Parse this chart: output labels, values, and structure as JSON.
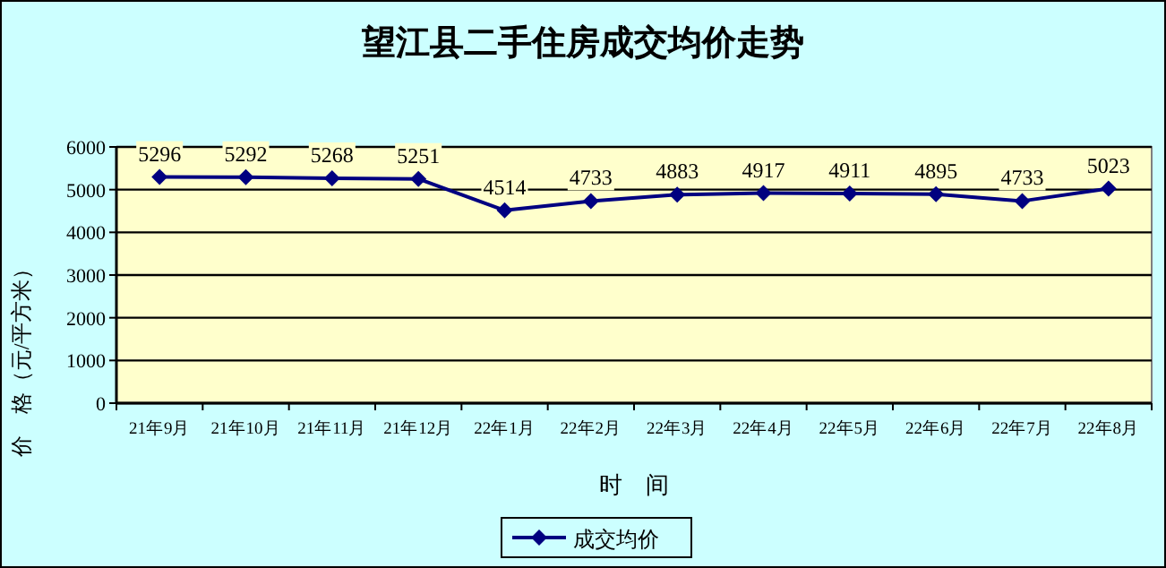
{
  "chart_data": {
    "type": "line",
    "title": "望江县二手住房成交均价走势",
    "xlabel": "时　间",
    "ylabel": "价　格（元/平方米）",
    "categories": [
      "21年9月",
      "21年10月",
      "21年11月",
      "21年12月",
      "22年1月",
      "22年2月",
      "22年3月",
      "22年4月",
      "22年5月",
      "22年6月",
      "22年7月",
      "22年8月"
    ],
    "series": [
      {
        "name": "成交均价",
        "color": "#000080",
        "values": [
          5296,
          5292,
          5268,
          5251,
          4514,
          4733,
          4883,
          4917,
          4911,
          4895,
          4733,
          5023
        ]
      }
    ],
    "data_labels": true,
    "ylim": [
      0,
      6000
    ],
    "yticks": [
      0,
      1000,
      2000,
      3000,
      4000,
      5000,
      6000
    ],
    "grid": "y",
    "legend": "bottom",
    "marker": "diamond",
    "line_style": "solid"
  }
}
